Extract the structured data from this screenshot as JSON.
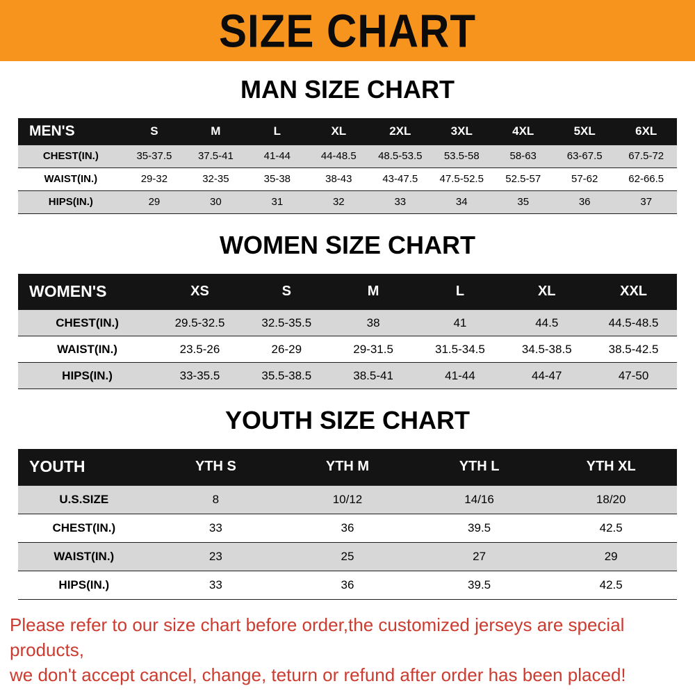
{
  "banner": {
    "title": "SIZE CHART"
  },
  "colors": {
    "banner_bg": "#F7941E",
    "table_header_bg": "#141414",
    "row_alt_bg": "#D7D7D7",
    "footer_text": "#CC3B2F"
  },
  "chart_data": [
    {
      "type": "table",
      "title": "MAN SIZE CHART",
      "header": [
        "MEN'S",
        "S",
        "M",
        "L",
        "XL",
        "2XL",
        "3XL",
        "4XL",
        "5XL",
        "6XL"
      ],
      "rows": [
        [
          "CHEST(IN.)",
          "35-37.5",
          "37.5-41",
          "41-44",
          "44-48.5",
          "48.5-53.5",
          "53.5-58",
          "58-63",
          "63-67.5",
          "67.5-72"
        ],
        [
          "WAIST(IN.)",
          "29-32",
          "32-35",
          "35-38",
          "38-43",
          "43-47.5",
          "47.5-52.5",
          "52.5-57",
          "57-62",
          "62-66.5"
        ],
        [
          "HIPS(IN.)",
          "29",
          "30",
          "31",
          "32",
          "33",
          "34",
          "35",
          "36",
          "37"
        ]
      ]
    },
    {
      "type": "table",
      "title": "WOMEN SIZE CHART",
      "header": [
        "WOMEN'S",
        "XS",
        "S",
        "M",
        "L",
        "XL",
        "XXL"
      ],
      "rows": [
        [
          "CHEST(IN.)",
          "29.5-32.5",
          "32.5-35.5",
          "38",
          "41",
          "44.5",
          "44.5-48.5"
        ],
        [
          "WAIST(IN.)",
          "23.5-26",
          "26-29",
          "29-31.5",
          "31.5-34.5",
          "34.5-38.5",
          "38.5-42.5"
        ],
        [
          "HIPS(IN.)",
          "33-35.5",
          "35.5-38.5",
          "38.5-41",
          "41-44",
          "44-47",
          "47-50"
        ]
      ]
    },
    {
      "type": "table",
      "title": "YOUTH SIZE CHART",
      "header": [
        "YOUTH",
        "YTH S",
        "YTH M",
        "YTH L",
        "YTH XL"
      ],
      "rows": [
        [
          "U.S.SIZE",
          "8",
          "10/12",
          "14/16",
          "18/20"
        ],
        [
          "CHEST(IN.)",
          "33",
          "36",
          "39.5",
          "42.5"
        ],
        [
          "WAIST(IN.)",
          "23",
          "25",
          "27",
          "29"
        ],
        [
          "HIPS(IN.)",
          "33",
          "36",
          "39.5",
          "42.5"
        ]
      ]
    }
  ],
  "footer": {
    "line1": "Please refer to our size chart before order,the customized jerseys are special products,",
    "line2": "we don't accept cancel, change, teturn or refund after order has been placed!"
  }
}
